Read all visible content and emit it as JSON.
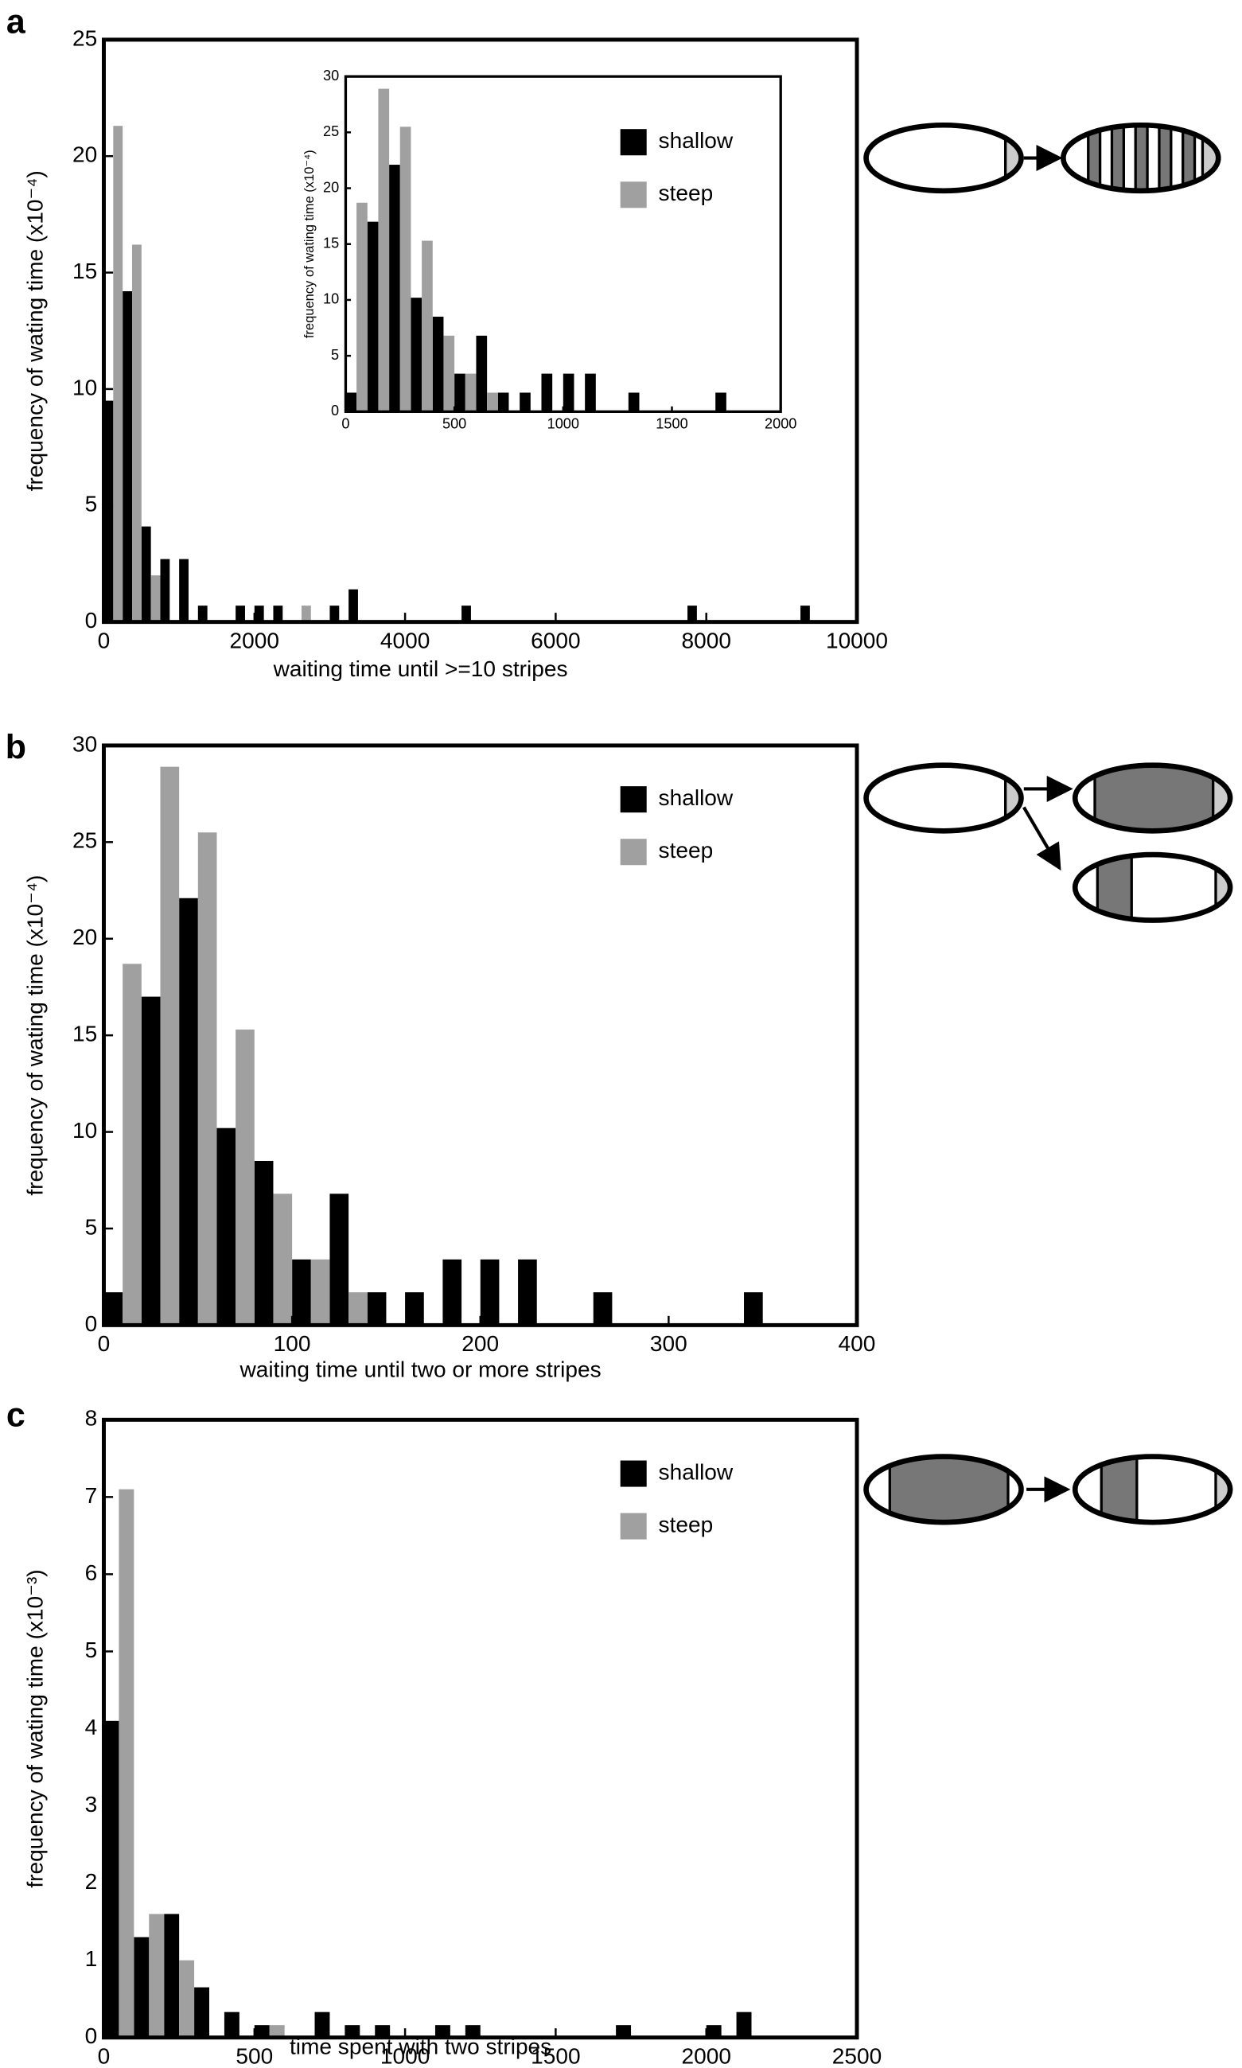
{
  "chart_data": [
    {
      "type": "histogram",
      "label": "a",
      "xlabel": "waiting time until >=10 stripes",
      "ylabel": "frequency of wating time (x10⁻⁴)",
      "bins": [
        0,
        250,
        500,
        750,
        1000,
        1250,
        1500,
        1750,
        2000,
        2250,
        2500,
        2750,
        3000,
        3250,
        3500,
        3750,
        4000,
        4250,
        4500,
        4750,
        5000,
        5250,
        5500,
        5750,
        6000,
        6250,
        6500,
        6750,
        7000,
        7250,
        7500,
        7750,
        8000,
        8250,
        8500,
        8750,
        9000,
        9250,
        9500,
        9750,
        10000
      ],
      "series": [
        {
          "name": "shallow",
          "color": "#000000",
          "values": [
            9.5,
            14.2,
            4.1,
            2.7,
            2.7,
            0.7,
            0,
            0.7,
            0.7,
            0.7,
            0,
            0,
            0.7,
            1.4,
            0,
            0,
            0,
            0,
            0,
            0.7,
            0,
            0,
            0,
            0,
            0,
            0,
            0,
            0,
            0,
            0,
            0,
            0.7,
            0,
            0,
            0,
            0,
            0,
            0.7,
            0,
            0
          ]
        },
        {
          "name": "steep",
          "color": "#a0a0a0",
          "values": [
            21.3,
            16.2,
            2.0,
            0,
            0,
            0,
            0,
            0,
            0,
            0,
            0.7,
            0,
            0,
            0,
            0,
            0,
            0,
            0,
            0,
            0,
            0,
            0,
            0,
            0,
            0,
            0,
            0,
            0,
            0,
            0,
            0,
            0,
            0,
            0,
            0,
            0,
            0,
            0,
            0,
            0
          ]
        }
      ],
      "xlim": [
        0,
        10000
      ],
      "ylim": [
        0,
        25
      ],
      "xticks": [
        0,
        2000,
        4000,
        6000,
        8000,
        10000
      ],
      "yticks": [
        0,
        5,
        10,
        15,
        20,
        25
      ]
    },
    {
      "type": "histogram",
      "ylabel": "frequency of wating time (x10⁻⁴)",
      "bins": [
        0,
        100,
        200,
        300,
        400,
        500,
        600,
        700,
        800,
        900,
        1000,
        1100,
        1200,
        1300,
        1400,
        1500,
        1600,
        1700,
        1800,
        1900,
        2000
      ],
      "series": [
        {
          "name": "shallow",
          "color": "#000000",
          "values": [
            1.7,
            17.0,
            22.1,
            10.2,
            8.5,
            3.4,
            6.8,
            1.7,
            1.7,
            3.4,
            3.4,
            3.4,
            0,
            1.7,
            0,
            0,
            0,
            1.7,
            0,
            0
          ]
        },
        {
          "name": "steep",
          "color": "#a0a0a0",
          "values": [
            18.7,
            28.9,
            25.5,
            15.3,
            6.8,
            3.4,
            1.7,
            0,
            0,
            0,
            0,
            0,
            0,
            0,
            0,
            0,
            0,
            0,
            0,
            0
          ]
        }
      ],
      "xlim": [
        0,
        2000
      ],
      "ylim": [
        0,
        30
      ],
      "xticks": [
        0,
        500,
        1000,
        1500,
        2000
      ],
      "yticks": [
        0,
        5,
        10,
        15,
        20,
        25,
        30
      ],
      "legend": "upper right"
    },
    {
      "type": "histogram",
      "label": "b",
      "xlabel": "waiting time until two or more stripes",
      "ylabel": "frequency of wating time (x10⁻⁴)",
      "bins": [
        0,
        20,
        40,
        60,
        80,
        100,
        120,
        140,
        160,
        180,
        200,
        220,
        240,
        260,
        280,
        300,
        320,
        340,
        360,
        380,
        400
      ],
      "series": [
        {
          "name": "shallow",
          "color": "#000000",
          "values": [
            1.7,
            17.0,
            22.1,
            10.2,
            8.5,
            3.4,
            6.8,
            1.7,
            1.7,
            3.4,
            3.4,
            3.4,
            0,
            1.7,
            0,
            0,
            0,
            1.7,
            0,
            0
          ]
        },
        {
          "name": "steep",
          "color": "#a0a0a0",
          "values": [
            18.7,
            28.9,
            25.5,
            15.3,
            6.8,
            3.4,
            1.7,
            0,
            0,
            0,
            0,
            0,
            0,
            0,
            0,
            0,
            0,
            0,
            0,
            0
          ]
        }
      ],
      "xlim": [
        0,
        400
      ],
      "ylim": [
        0,
        30
      ],
      "xticks": [
        0,
        100,
        200,
        300,
        400
      ],
      "yticks": [
        0,
        5,
        10,
        15,
        20,
        25,
        30
      ],
      "legend": "upper right"
    },
    {
      "type": "histogram",
      "label": "c",
      "xlabel": "time spent with two stripes",
      "ylabel": "frequency of wating time (x10⁻³)",
      "bins": [
        0,
        100,
        200,
        300,
        400,
        500,
        600,
        700,
        800,
        900,
        1000,
        1100,
        1200,
        1300,
        1400,
        1500,
        1600,
        1700,
        1800,
        1900,
        2000,
        2100,
        2200,
        2300,
        2400,
        2500
      ],
      "series": [
        {
          "name": "shallow",
          "color": "#000000",
          "values": [
            4.1,
            1.3,
            1.6,
            0.65,
            0.33,
            0.16,
            0,
            0.33,
            0.16,
            0.16,
            0,
            0.16,
            0.16,
            0,
            0,
            0,
            0,
            0.16,
            0,
            0,
            0.16,
            0.33,
            0,
            0,
            0
          ]
        },
        {
          "name": "steep",
          "color": "#a0a0a0",
          "values": [
            7.1,
            1.6,
            1.0,
            0,
            0,
            0.16,
            0,
            0,
            0,
            0,
            0,
            0,
            0,
            0,
            0,
            0,
            0,
            0,
            0,
            0,
            0,
            0,
            0,
            0,
            0
          ]
        }
      ],
      "xlim": [
        0,
        2500
      ],
      "ylim": [
        0,
        8
      ],
      "xticks": [
        0,
        500,
        1000,
        1500,
        2000,
        2500
      ],
      "yticks": [
        0,
        1,
        2,
        3,
        4,
        5,
        6,
        7,
        8
      ],
      "legend": "upper right"
    }
  ]
}
